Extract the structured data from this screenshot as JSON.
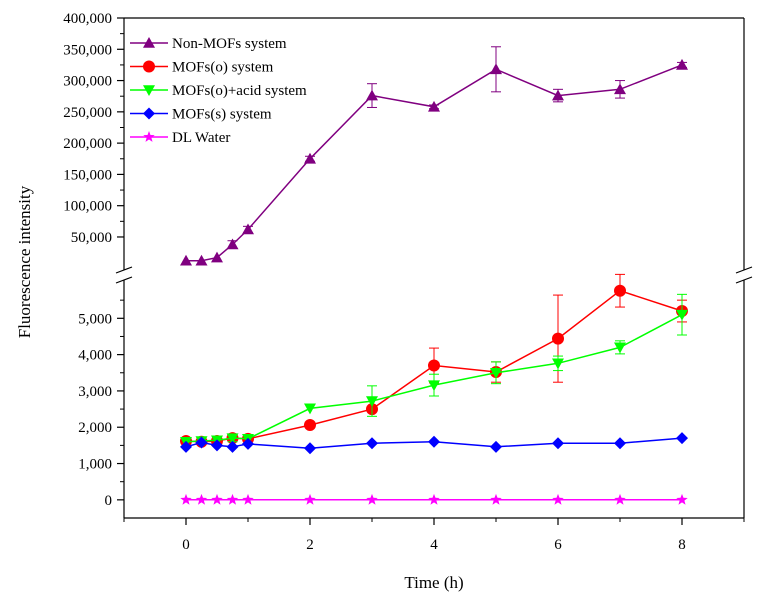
{
  "chart_data": {
    "type": "line",
    "xlabel": "Time (h)",
    "ylabel": "Fluorescence intensity",
    "xlim": [
      -1,
      9
    ],
    "x_ticks": [
      0,
      2,
      4,
      6,
      8
    ],
    "y_break": true,
    "y_lower_range": [
      -500,
      6000
    ],
    "y_upper_range": [
      10000,
      400000
    ],
    "y_lower_ticks": [
      0,
      1000,
      2000,
      3000,
      4000,
      5000
    ],
    "y_upper_ticks": [
      50000,
      100000,
      150000,
      200000,
      250000,
      300000,
      350000,
      400000
    ],
    "legend_position": "top-left",
    "series": [
      {
        "name": "Non-MOFs system",
        "color": "#800080",
        "marker": "triangle-up",
        "x": [
          0,
          0.25,
          0.5,
          0.75,
          1,
          2,
          3,
          4,
          5,
          6,
          7,
          8
        ],
        "y": [
          12000,
          12000,
          17000,
          38000,
          62000,
          175000,
          276000,
          258000,
          318000,
          276000,
          286000,
          325000
        ],
        "err": [
          0,
          0,
          0,
          6000,
          5000,
          4000,
          19000,
          3000,
          36000,
          10000,
          14000,
          4000
        ]
      },
      {
        "name": "MOFs(o) system",
        "color": "#ff0000",
        "marker": "circle",
        "x": [
          0,
          0.25,
          0.5,
          0.75,
          1,
          2,
          3,
          4,
          5,
          6,
          7,
          8
        ],
        "y": [
          1620,
          1600,
          1620,
          1700,
          1680,
          2060,
          2500,
          3700,
          3520,
          4440,
          5760,
          5200
        ],
        "err": [
          0,
          0,
          0,
          0,
          0,
          0,
          0,
          480,
          280,
          1200,
          450,
          300
        ]
      },
      {
        "name": "MOFs(o)+acid system",
        "color": "#00ff00",
        "marker": "triangle-down",
        "x": [
          0,
          0.25,
          0.5,
          0.75,
          1,
          2,
          3,
          4,
          5,
          6,
          7,
          8
        ],
        "y": [
          1600,
          1620,
          1640,
          1700,
          1680,
          2520,
          2720,
          3160,
          3500,
          3760,
          4200,
          5100
        ],
        "err": [
          0,
          0,
          0,
          100,
          0,
          0,
          420,
          300,
          300,
          200,
          180,
          560
        ]
      },
      {
        "name": "MOFs(s) system",
        "color": "#0000ff",
        "marker": "diamond",
        "x": [
          0,
          0.25,
          0.5,
          0.75,
          1,
          2,
          3,
          4,
          5,
          6,
          7,
          8
        ],
        "y": [
          1460,
          1580,
          1500,
          1460,
          1540,
          1420,
          1560,
          1600,
          1460,
          1560,
          1560,
          1700
        ],
        "err": [
          0,
          0,
          0,
          0,
          0,
          0,
          0,
          0,
          0,
          0,
          0,
          0
        ]
      },
      {
        "name": "DL Water",
        "color": "#ff00ff",
        "marker": "star",
        "x": [
          0,
          0.25,
          0.5,
          0.75,
          1,
          2,
          3,
          4,
          5,
          6,
          7,
          8
        ],
        "y": [
          0,
          0,
          0,
          0,
          0,
          0,
          0,
          0,
          0,
          0,
          0,
          0
        ],
        "err": [
          0,
          0,
          0,
          0,
          0,
          0,
          0,
          0,
          0,
          0,
          0,
          0
        ]
      }
    ]
  }
}
